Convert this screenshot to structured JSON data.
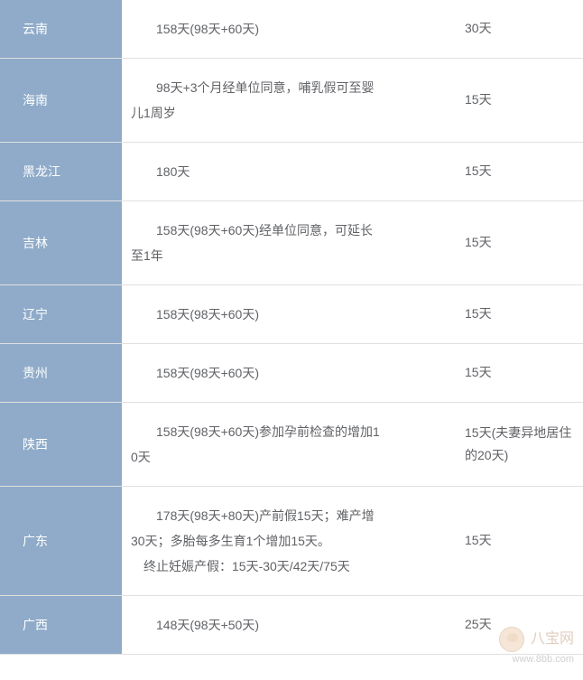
{
  "rows": [
    {
      "province": "云南",
      "desc_lines": [
        "158天(98天+60天)"
      ],
      "days": "30天"
    },
    {
      "province": "海南",
      "desc_lines": [
        "98天+3个月经单位同意，哺乳假可至婴",
        "儿1周岁"
      ],
      "first_indent": true,
      "days": "15天"
    },
    {
      "province": "黑龙江",
      "desc_lines": [
        "180天"
      ],
      "days": "15天"
    },
    {
      "province": "吉林",
      "desc_lines": [
        "158天(98天+60天)经单位同意，可延长",
        "至1年"
      ],
      "first_indent": true,
      "days": "15天"
    },
    {
      "province": "辽宁",
      "desc_lines": [
        "158天(98天+60天)"
      ],
      "days": "15天"
    },
    {
      "province": "贵州",
      "desc_lines": [
        "158天(98天+60天)"
      ],
      "days": "15天"
    },
    {
      "province": "陕西",
      "desc_lines": [
        "158天(98天+60天)参加孕前检查的增加1",
        "0天"
      ],
      "first_indent": true,
      "days": "15天(夫妻异地居住的20天)"
    },
    {
      "province": "广东",
      "desc_lines": [
        "178天(98天+80天)产前假15天；难产增",
        "30天；多胎每多生育1个增加15天。",
        "终止妊娠产假：15天-30天/42天/75天"
      ],
      "first_indent": true,
      "last_line_indent": 1,
      "days": "15天"
    },
    {
      "province": "广西",
      "desc_lines": [
        "148天(98天+50天)"
      ],
      "days": "25天"
    }
  ],
  "watermark": {
    "brand": "八宝网",
    "url": "www.8bb.com"
  },
  "colors": {
    "province_bg": "#8fabc9",
    "province_text": "#ffffff",
    "body_text": "#606266",
    "border": "#e0e0e0"
  }
}
